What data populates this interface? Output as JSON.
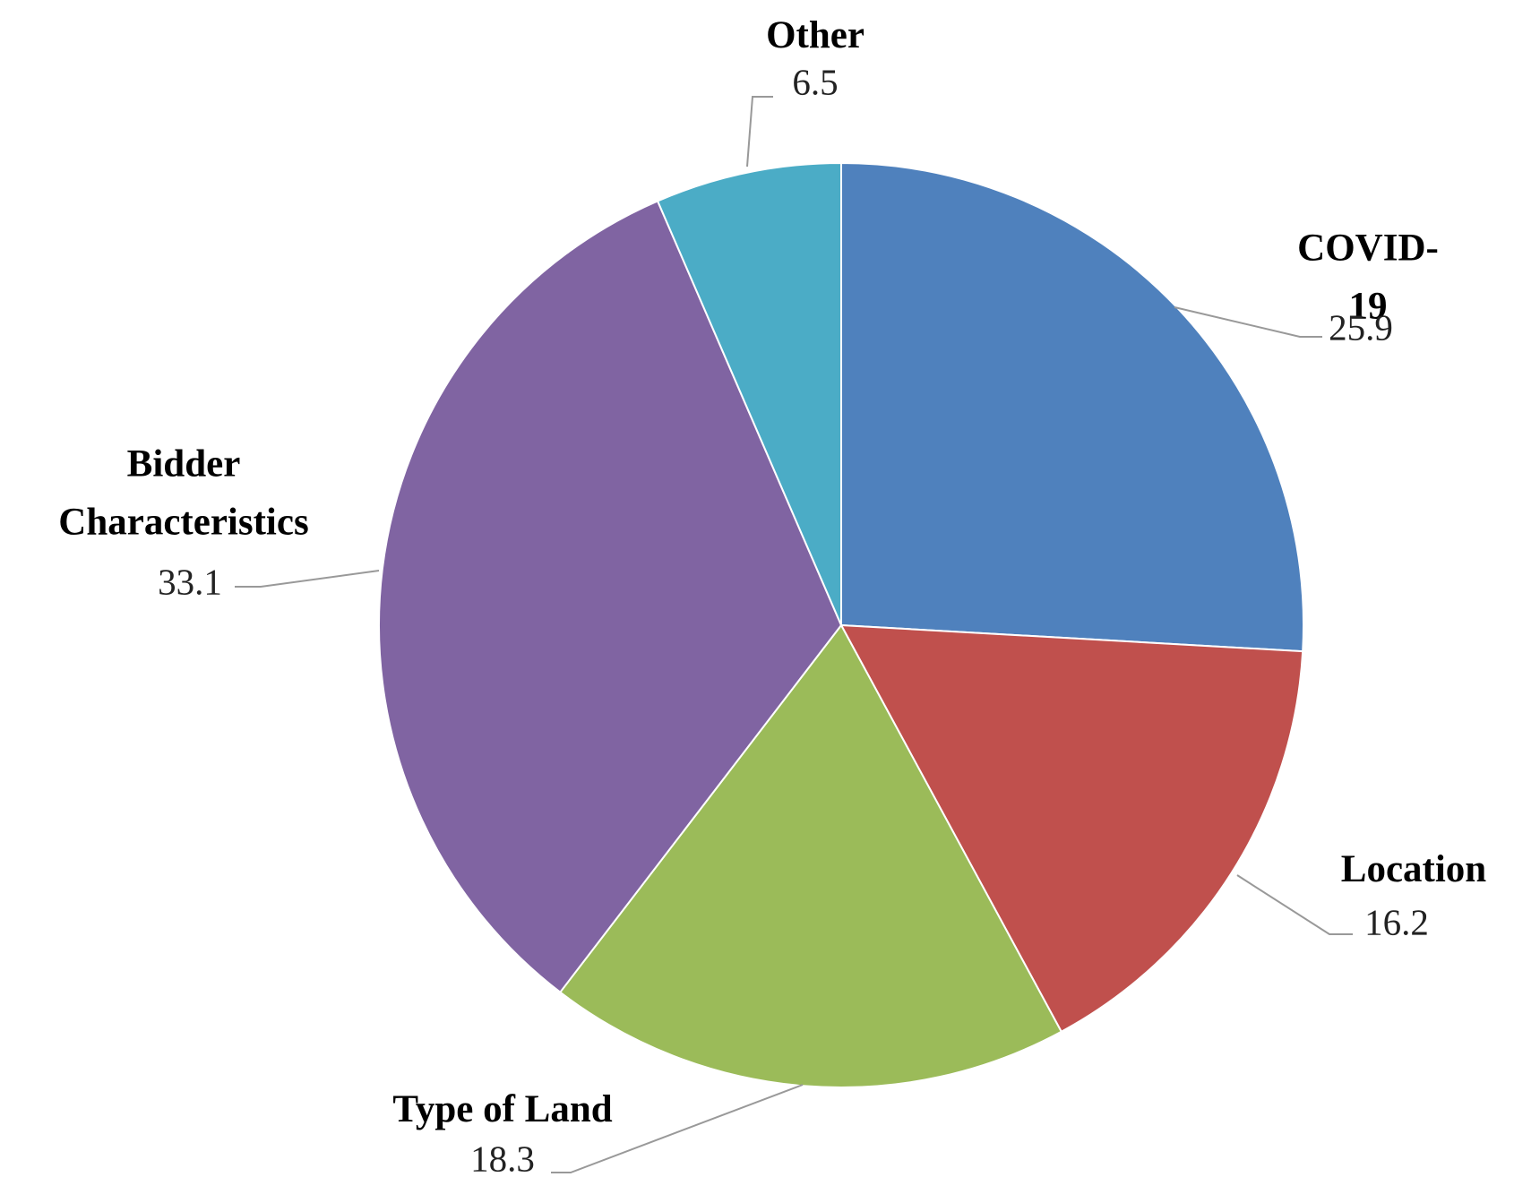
{
  "chart_data": {
    "type": "pie",
    "categories": [
      "COVID-19",
      "Location",
      "Type of Land",
      "Bidder Characteristics",
      "Other"
    ],
    "values": [
      25.9,
      16.2,
      18.3,
      33.1,
      6.5
    ],
    "colors": [
      "#4f81bd",
      "#c0504d",
      "#9bbb59",
      "#8064a2",
      "#4bacc6"
    ]
  }
}
